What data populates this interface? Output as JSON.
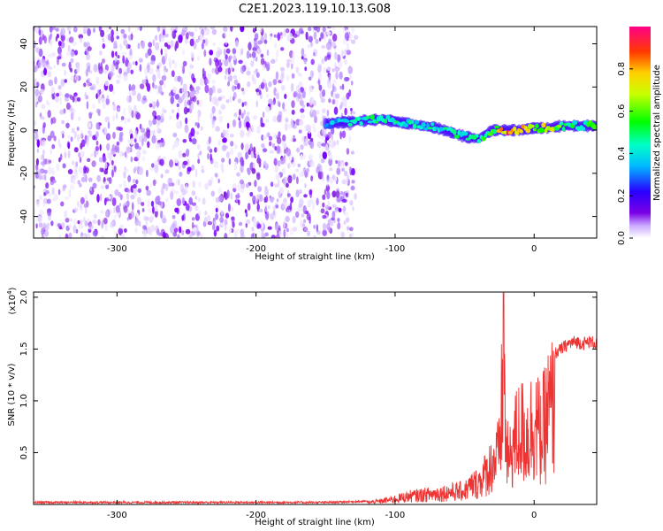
{
  "figure": {
    "title": "C2E1.2023.119.10.13.G08"
  },
  "chart_data": [
    {
      "type": "heatmap",
      "title": "C2E1.2023.119.10.13.G08",
      "xlabel": "Height of straight line (km)",
      "ylabel": "Frequency (Hz)",
      "xlim": [
        -360,
        45
      ],
      "ylim": [
        -50,
        48
      ],
      "x_ticks": [
        -300,
        -200,
        -100,
        0
      ],
      "y_ticks": [
        -40,
        -20,
        0,
        20,
        40
      ],
      "colorbar": {
        "label": "Normalized spectral amplitude",
        "range": [
          0,
          1
        ],
        "ticks": [
          "0.0",
          "0.2",
          "0.4",
          "0.6",
          "0.8"
        ]
      },
      "noise_region_x": [
        -360,
        -130
      ],
      "ridge": {
        "x": [
          -150,
          -130,
          -110,
          -90,
          -70,
          -50,
          -40,
          -30,
          -20,
          -10,
          0,
          10,
          20,
          30,
          45
        ],
        "y": [
          3,
          4,
          5,
          3,
          1,
          -3,
          -4,
          0,
          0,
          0,
          1,
          1,
          2,
          2,
          2
        ],
        "amplitude": [
          0.35,
          0.45,
          0.5,
          0.45,
          0.45,
          0.5,
          0.55,
          0.55,
          0.95,
          0.9,
          0.6,
          0.8,
          0.55,
          0.5,
          0.55
        ]
      }
    },
    {
      "type": "line",
      "xlabel": "Height of straight line (km)",
      "ylabel": "SNR (10 * v/v)",
      "scale_label": "(x10",
      "scale_exp": "4",
      "scale_close": ")",
      "xlim": [
        -360,
        45
      ],
      "ylim": [
        0,
        2.05
      ],
      "x_ticks": [
        -300,
        -200,
        -100,
        0
      ],
      "y_ticks": [
        "0.5",
        "1.0",
        "1.5",
        "2.0"
      ],
      "color": "#ee3333",
      "series": [
        {
          "x": [
            -360,
            -300,
            -250,
            -200,
            -150,
            -120,
            -110,
            -100,
            -90,
            -80,
            -70,
            -60,
            -50,
            -45,
            -40,
            -35,
            -30,
            -25,
            -22,
            -20,
            -18,
            -15,
            -10,
            -5,
            0,
            5,
            10,
            15,
            20,
            25,
            30,
            35,
            40,
            45
          ],
          "y": [
            0.02,
            0.02,
            0.02,
            0.02,
            0.02,
            0.03,
            0.05,
            0.08,
            0.12,
            0.14,
            0.16,
            0.18,
            0.2,
            0.28,
            0.32,
            0.45,
            0.6,
            0.75,
            2.0,
            0.8,
            0.6,
            0.9,
            1.1,
            1.0,
            1.25,
            1.0,
            1.35,
            1.5,
            1.55,
            1.6,
            1.62,
            1.6,
            1.62,
            1.6
          ]
        }
      ]
    }
  ]
}
